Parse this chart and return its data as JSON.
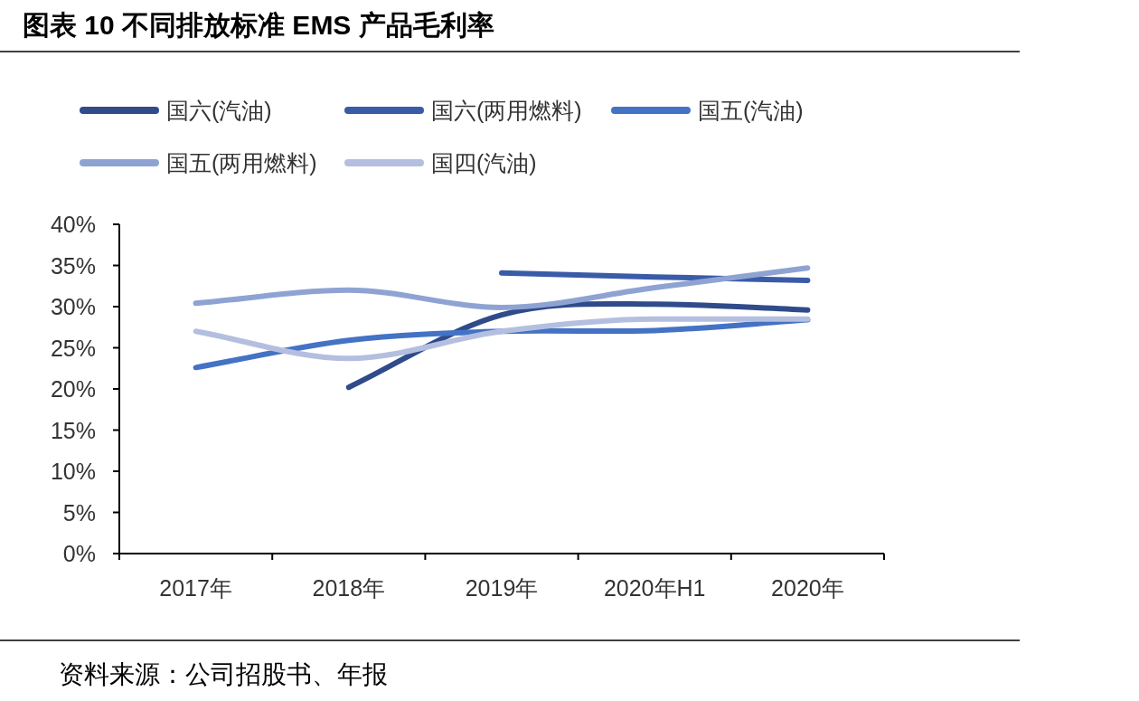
{
  "chart_data": {
    "type": "line",
    "title": "图表 10  不同排放标准 EMS 产品毛利率",
    "annotations": [
      "资料来源：公司招股书、年报"
    ],
    "categories": [
      "2017年",
      "2018年",
      "2019年",
      "2020年H1",
      "2020年"
    ],
    "series": [
      {
        "name": "国六(汽油)",
        "color": "#2f4b8a",
        "values": [
          null,
          20.2,
          29.0,
          30.3,
          29.6
        ]
      },
      {
        "name": "国六(两用燃料)",
        "color": "#3a5ba8",
        "values": [
          null,
          null,
          34.1,
          33.6,
          33.2
        ]
      },
      {
        "name": "国五(汽油)",
        "color": "#4472c4",
        "values": [
          22.6,
          25.9,
          27.0,
          27.1,
          28.4
        ]
      },
      {
        "name": "国五(两用燃料)",
        "color": "#8fa3d3",
        "values": [
          30.4,
          32.0,
          29.9,
          32.3,
          34.7
        ]
      },
      {
        "name": "国四(汽油)",
        "color": "#b4bfe0",
        "values": [
          27.0,
          23.7,
          27.0,
          28.5,
          28.5
        ]
      }
    ],
    "ylim": [
      0,
      40
    ],
    "yticks": [
      {
        "value": 0,
        "label": "0%"
      },
      {
        "value": 5,
        "label": "5%"
      },
      {
        "value": 10,
        "label": "10%"
      },
      {
        "value": 15,
        "label": "15%"
      },
      {
        "value": 20,
        "label": "20%"
      },
      {
        "value": 25,
        "label": "25%"
      },
      {
        "value": 30,
        "label": "30%"
      },
      {
        "value": 35,
        "label": "35%"
      },
      {
        "value": 40,
        "label": "40%"
      }
    ],
    "grid": false,
    "legend": "top"
  }
}
